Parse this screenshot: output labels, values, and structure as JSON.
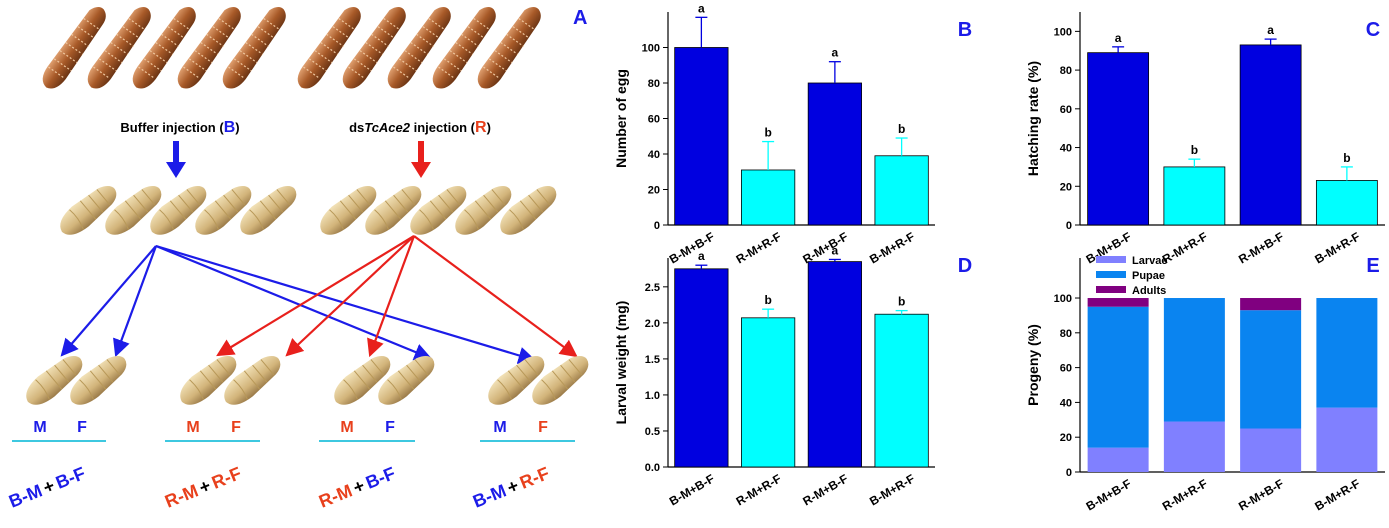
{
  "panel_a": {
    "label": "A",
    "buffer": {
      "text": "Buffer injection (",
      "code": "B",
      "close": ")"
    },
    "ds": {
      "prefix": "ds",
      "gene": "TcAce2",
      "text": " injection (",
      "code": "R",
      "close": ")"
    },
    "crosses": [
      {
        "male": "M",
        "female": "F",
        "pair_male": "B-M",
        "plus": "+",
        "pair_female": "B-F"
      },
      {
        "male": "M",
        "female": "F",
        "pair_male": "R-M",
        "plus": "+",
        "pair_female": "R-F"
      },
      {
        "male": "M",
        "female": "F",
        "pair_male": "R-M",
        "plus": "+",
        "pair_female": "B-F"
      },
      {
        "male": "M",
        "female": "F",
        "pair_male": "B-M",
        "plus": "+",
        "pair_female": "R-F"
      }
    ]
  },
  "chart_data": [
    {
      "type": "bar",
      "panel": "B",
      "y_label": "Number of egg",
      "categories": [
        "B-M+B-F",
        "R-M+R-F",
        "R-M+B-F",
        "B-M+R-F"
      ],
      "values": [
        100,
        31,
        80,
        39
      ],
      "errors": [
        17,
        16,
        12,
        10
      ],
      "letters": [
        "a",
        "b",
        "a",
        "b"
      ],
      "colors": [
        "#0000e0",
        "#00ffff",
        "#0000e0",
        "#00ffff"
      ],
      "ylim": [
        0,
        120
      ],
      "yticks": [
        0,
        20,
        40,
        60,
        80,
        100
      ]
    },
    {
      "type": "bar",
      "panel": "C",
      "y_label": "Hatching rate (%)",
      "categories": [
        "B-M+B-F",
        "R-M+R-F",
        "R-M+B-F",
        "B-M+R-F"
      ],
      "values": [
        89,
        30,
        93,
        23
      ],
      "errors": [
        3,
        4,
        3,
        7
      ],
      "letters": [
        "a",
        "b",
        "a",
        "b"
      ],
      "colors": [
        "#0000e0",
        "#00ffff",
        "#0000e0",
        "#00ffff"
      ],
      "ylim": [
        0,
        110
      ],
      "yticks": [
        0,
        20,
        40,
        60,
        80,
        100
      ]
    },
    {
      "type": "bar",
      "panel": "D",
      "y_label": "Larval weight (mg)",
      "categories": [
        "B-M+B-F",
        "R-M+R-F",
        "R-M+B-F",
        "B-M+R-F"
      ],
      "values": [
        2.75,
        2.07,
        2.85,
        2.12
      ],
      "errors": [
        0.05,
        0.12,
        0.03,
        0.05
      ],
      "letters": [
        "a",
        "b",
        "a",
        "b"
      ],
      "colors": [
        "#0000e0",
        "#00ffff",
        "#0000e0",
        "#00ffff"
      ],
      "ylim": [
        0,
        2.9
      ],
      "yticks": [
        {
          "value": 0,
          "label": "0.0"
        },
        0.5,
        {
          "value": 1,
          "label": "1.0"
        },
        1.5,
        {
          "value": 2,
          "label": "2.0"
        },
        2.5
      ]
    },
    {
      "type": "stacked_bar",
      "panel": "E",
      "y_label": "Progeny (%)",
      "categories": [
        "B-M+B-F",
        "R-M+R-F",
        "R-M+B-F",
        "B-M+R-F"
      ],
      "series": [
        {
          "name": "Larvae",
          "color": "#8080ff",
          "values": [
            14,
            29,
            25,
            37
          ]
        },
        {
          "name": "Pupae",
          "color": "#0a84f0",
          "values": [
            81,
            71,
            68,
            63
          ]
        },
        {
          "name": "Adults",
          "color": "#800080",
          "values": [
            5,
            0,
            7,
            0
          ]
        }
      ],
      "ylim": [
        0,
        123
      ],
      "yticks": [
        0,
        20,
        40,
        60,
        80,
        100
      ]
    }
  ]
}
